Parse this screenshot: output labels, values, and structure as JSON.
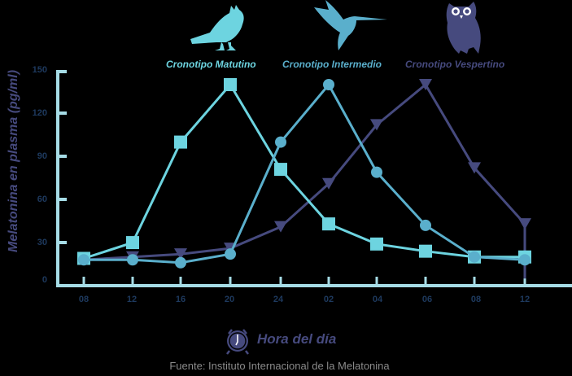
{
  "chart_data": {
    "type": "line",
    "title": "",
    "xlabel": "Hora del día",
    "ylabel": "Melatonina en plasma (pg/ml)",
    "ylim": [
      0,
      150
    ],
    "yticks": [
      "0",
      "30",
      "60",
      "90",
      "120",
      "150"
    ],
    "categories": [
      "08",
      "12",
      "16",
      "20",
      "24",
      "02",
      "04",
      "06",
      "08",
      "12"
    ],
    "grid": false,
    "legend_position": "top",
    "series": [
      {
        "name": "Cronotipo Matutino",
        "marker": "square",
        "color": "#6DD4E0",
        "values": [
          19,
          30,
          100,
          140,
          81,
          43,
          29,
          24,
          20,
          20
        ]
      },
      {
        "name": "Cronotipo Intermedio",
        "marker": "circle",
        "color": "#5AAFCC",
        "values": [
          18,
          18,
          16,
          22,
          100,
          140,
          79,
          42,
          20,
          18
        ]
      },
      {
        "name": "Cronotipo Vespertino",
        "marker": "triangle-down",
        "color": "#464A7E",
        "values": [
          18,
          20,
          22,
          26,
          41,
          71,
          112,
          140,
          82,
          43
        ]
      }
    ],
    "annotations": [
      "Fuente: Instituto Internacional de la Melatonina"
    ]
  },
  "legend": {
    "matutino": "Cronotipo Matutino",
    "intermedio": "Cronotipo Intermedio",
    "vespertino": "Cronotipo Vespertino"
  },
  "icons": {
    "matutino": "songbird-icon",
    "intermedio": "hummingbird-icon",
    "vespertino": "owl-icon",
    "xaxis": "alarm-clock-icon"
  },
  "axis": {
    "ylabel": "Melatonina en plasma (pg/ml)",
    "xlabel": "Hora del día",
    "yticks": [
      "150",
      "120",
      "90",
      "60",
      "30",
      "0"
    ],
    "xticks": [
      "08",
      "12",
      "16",
      "20",
      "24",
      "02",
      "04",
      "06",
      "08",
      "12"
    ]
  },
  "source": "Fuente: Instituto Internacional de la Melatonina",
  "colors": {
    "background": "#000000",
    "axis": "#A6DCE6",
    "tick_text": "#1E3A5F",
    "matutino": "#6DD4E0",
    "intermedio": "#5AAFCC",
    "vespertino": "#464A7E",
    "source_text": "#8A8A8A"
  }
}
